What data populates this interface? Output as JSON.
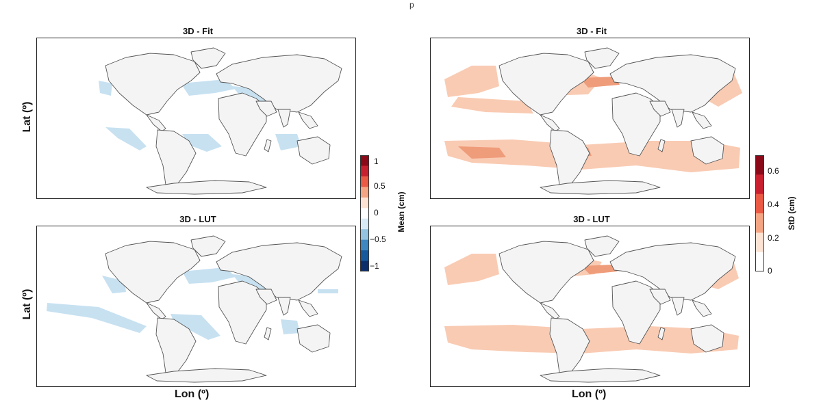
{
  "top_fragment": "p",
  "panels": {
    "top_left": {
      "title": "3D - Fit"
    },
    "bottom_left": {
      "title": "3D - LUT"
    },
    "top_right": {
      "title": "3D - Fit"
    },
    "bottom_right": {
      "title": "3D - LUT"
    }
  },
  "axes": {
    "lat_label": "Lat (º)",
    "lon_label": "Lon (º)"
  },
  "colorbar_mean": {
    "title": "Mean (cm)",
    "ticks": [
      "1",
      "0.5",
      "0",
      "−0.5",
      "−1"
    ],
    "colors": [
      "#8b0a1a",
      "#c8202f",
      "#ea5a45",
      "#f4a584",
      "#fde3d3",
      "#ffffff",
      "#d8eaf5",
      "#93c3e0",
      "#3e88c2",
      "#165a9e",
      "#0b2f6b"
    ]
  },
  "colorbar_std": {
    "title": "StD (cm)",
    "ticks": [
      "0.6",
      "0.4",
      "0.2",
      "0"
    ],
    "colors": [
      "#8b0a1a",
      "#c8202f",
      "#ea5a45",
      "#f4a584",
      "#fde3d3",
      "#ffffff"
    ]
  },
  "map_colors": {
    "land": "#f4f4f4",
    "coast": "#555555",
    "blue_light": "#c7e1f1",
    "orange_light": "#f9cbb3",
    "orange_mid": "#ef9c7a"
  }
}
